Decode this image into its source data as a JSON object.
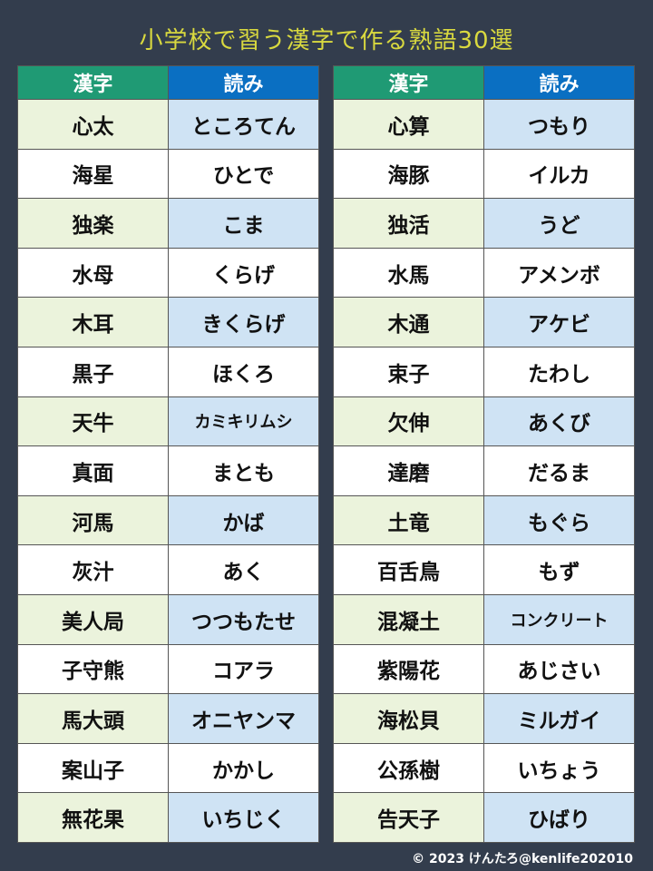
{
  "title": "小学校で習う漢字で作る熟語30選",
  "headers": {
    "kanji": "漢字",
    "reading": "読み"
  },
  "colors": {
    "background": "#333d4d",
    "title": "#d9d93f",
    "header_kanji": "#1f9a74",
    "header_reading": "#0a6fc2",
    "row_kanji": "#ebf3dc",
    "row_reading": "#cfe3f4"
  },
  "left": [
    {
      "kanji": "心太",
      "reading": "ところてん"
    },
    {
      "kanji": "海星",
      "reading": "ひとで"
    },
    {
      "kanji": "独楽",
      "reading": "こま"
    },
    {
      "kanji": "水母",
      "reading": "くらげ"
    },
    {
      "kanji": "木耳",
      "reading": "きくらげ"
    },
    {
      "kanji": "黒子",
      "reading": "ほくろ"
    },
    {
      "kanji": "天牛",
      "reading": "カミキリムシ"
    },
    {
      "kanji": "真面",
      "reading": "まとも"
    },
    {
      "kanji": "河馬",
      "reading": "かば"
    },
    {
      "kanji": "灰汁",
      "reading": "あく"
    },
    {
      "kanji": "美人局",
      "reading": "つつもたせ"
    },
    {
      "kanji": "子守熊",
      "reading": "コアラ"
    },
    {
      "kanji": "馬大頭",
      "reading": "オニヤンマ"
    },
    {
      "kanji": "案山子",
      "reading": "かかし"
    },
    {
      "kanji": "無花果",
      "reading": "いちじく"
    }
  ],
  "right": [
    {
      "kanji": "心算",
      "reading": "つもり"
    },
    {
      "kanji": "海豚",
      "reading": "イルカ"
    },
    {
      "kanji": "独活",
      "reading": "うど"
    },
    {
      "kanji": "水馬",
      "reading": "アメンボ"
    },
    {
      "kanji": "木通",
      "reading": "アケビ"
    },
    {
      "kanji": "束子",
      "reading": "たわし"
    },
    {
      "kanji": "欠伸",
      "reading": "あくび"
    },
    {
      "kanji": "達磨",
      "reading": "だるま"
    },
    {
      "kanji": "土竜",
      "reading": "もぐら"
    },
    {
      "kanji": "百舌鳥",
      "reading": "もず"
    },
    {
      "kanji": "混凝土",
      "reading": "コンクリート"
    },
    {
      "kanji": "紫陽花",
      "reading": "あじさい"
    },
    {
      "kanji": "海松貝",
      "reading": "ミルガイ"
    },
    {
      "kanji": "公孫樹",
      "reading": "いちょう"
    },
    {
      "kanji": "告天子",
      "reading": "ひばり"
    }
  ],
  "credit": "© 2023 けんたろ@kenlife202010"
}
